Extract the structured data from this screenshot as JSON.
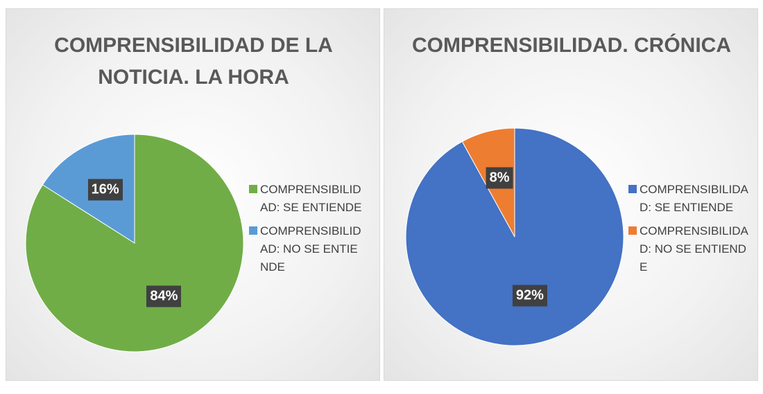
{
  "chart_data": [
    {
      "type": "pie",
      "title": "COMPRENSIBILIDAD DE LA NOTICIA. LA HORA",
      "categories": [
        "COMPRENSIBILIDAD: SE ENTIENDE",
        "COMPRENSIBILIDAD: NO SE ENTIENDE"
      ],
      "values": [
        84,
        16
      ],
      "value_labels": [
        "84%",
        "16%"
      ],
      "colors": [
        "#70ad47",
        "#5b9bd5"
      ],
      "legend": "right"
    },
    {
      "type": "pie",
      "title": "COMPRENSIBILIDAD. CRÓNICA",
      "categories": [
        "COMPRENSIBILIDAD: SE ENTIENDE",
        "COMPRENSIBILIDAD: NO SE ENTIENDE"
      ],
      "values": [
        92,
        8
      ],
      "value_labels": [
        "92%",
        "8%"
      ],
      "colors": [
        "#4472c4",
        "#ed7d31"
      ],
      "legend": "right"
    }
  ]
}
